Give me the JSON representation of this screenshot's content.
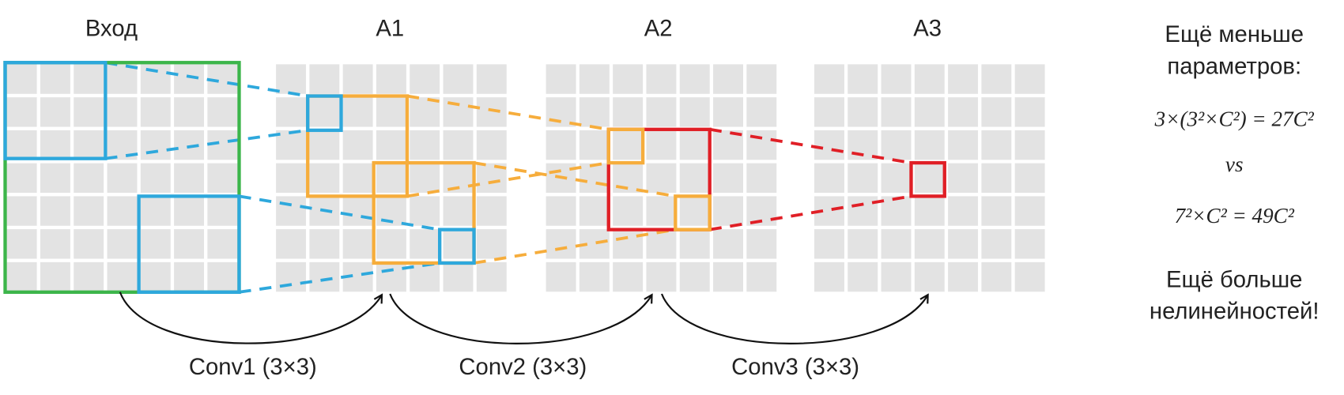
{
  "panels": [
    {
      "label": "Вход"
    },
    {
      "label": "A1"
    },
    {
      "label": "A2"
    },
    {
      "label": "A3"
    }
  ],
  "convs": [
    {
      "label": "Conv1 (3×3)"
    },
    {
      "label": "Conv2 (3×3)"
    },
    {
      "label": "Conv3 (3×3)"
    }
  ],
  "side": {
    "heading": [
      "Ещё меньше",
      "параметров:"
    ],
    "formula1": "3×(3²×C²) = 27C²",
    "vs": "vs",
    "formula2": "7²×C² = 49C²",
    "conclusion": [
      "Ещё больше",
      "нелинейностей!"
    ]
  }
}
